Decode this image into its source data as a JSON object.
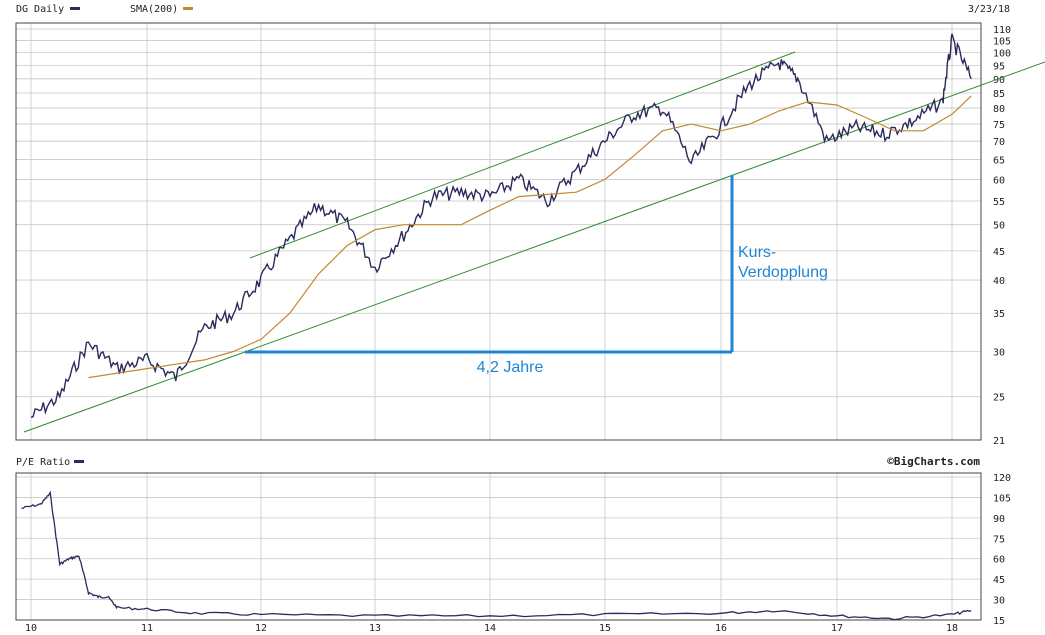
{
  "header": {
    "symbol_label": "DG Daily",
    "sma_label": "SMA(200)",
    "date": "3/23/18"
  },
  "lower_panel": {
    "title": "P/E Ratio",
    "credit": "©BigCharts.com"
  },
  "annotations": {
    "height_label_line1": "Kurs-",
    "height_label_line2": "Verdopplung",
    "width_label": "4,2 Jahre"
  },
  "colors": {
    "price": "#2a2a5c",
    "sma": "#c08a2e",
    "channel": "#2e8b2e",
    "annotation": "#1f86d6",
    "grid": "#c8c8c8"
  },
  "chart_data": [
    {
      "type": "line",
      "title": "DG Daily",
      "y_scale": "log",
      "ylim": [
        21,
        110
      ],
      "y_ticks": [
        21,
        25,
        30,
        35,
        40,
        45,
        50,
        55,
        60,
        65,
        70,
        75,
        80,
        85,
        90,
        95,
        100,
        105,
        110
      ],
      "x_ticks": [
        "10",
        "11",
        "12",
        "13",
        "14",
        "15",
        "16",
        "17",
        "18"
      ],
      "grid": true,
      "series": [
        {
          "name": "DG Daily",
          "x": [
            "2010-01",
            "2010-04",
            "2010-07",
            "2010-10",
            "2011-01",
            "2011-04",
            "2011-07",
            "2011-10",
            "2012-01",
            "2012-04",
            "2012-07",
            "2012-10",
            "2013-01",
            "2013-04",
            "2013-07",
            "2013-10",
            "2014-01",
            "2014-04",
            "2014-07",
            "2014-10",
            "2015-01",
            "2015-04",
            "2015-07",
            "2015-10",
            "2016-01",
            "2016-04",
            "2016-07",
            "2016-09",
            "2016-12",
            "2017-03",
            "2017-06",
            "2017-09",
            "2017-12",
            "2018-01",
            "2018-03"
          ],
          "values": [
            23,
            25,
            31,
            28,
            29,
            27,
            33,
            35,
            40,
            47,
            54,
            50,
            42,
            48,
            56,
            57,
            56,
            60,
            55,
            62,
            70,
            78,
            80,
            64,
            74,
            88,
            96,
            90,
            70,
            74,
            72,
            76,
            82,
            105,
            90
          ]
        },
        {
          "name": "SMA(200)",
          "x": [
            "2010-07",
            "2010-10",
            "2011-01",
            "2011-04",
            "2011-07",
            "2011-10",
            "2012-01",
            "2012-04",
            "2012-07",
            "2012-10",
            "2013-01",
            "2013-04",
            "2013-07",
            "2013-10",
            "2014-01",
            "2014-04",
            "2014-07",
            "2014-10",
            "2015-01",
            "2015-04",
            "2015-07",
            "2015-10",
            "2016-01",
            "2016-04",
            "2016-07",
            "2016-10",
            "2017-01",
            "2017-04",
            "2017-07",
            "2017-10",
            "2018-01",
            "2018-03"
          ],
          "values": [
            27,
            27.5,
            28,
            28.5,
            29,
            30,
            31.5,
            35,
            41,
            46,
            49,
            50,
            50,
            50,
            53,
            56,
            56.5,
            57,
            60,
            66,
            73,
            75,
            73,
            75,
            79,
            82,
            81,
            77,
            73,
            73,
            78,
            84
          ]
        }
      ]
    },
    {
      "type": "line",
      "title": "P/E Ratio",
      "ylim": [
        15,
        120
      ],
      "y_ticks": [
        15,
        30,
        45,
        60,
        75,
        90,
        105,
        120
      ],
      "x_ticks": [
        "10",
        "11",
        "12",
        "13",
        "14",
        "15",
        "16",
        "17",
        "18"
      ],
      "grid": true,
      "series": [
        {
          "name": "P/E Ratio",
          "x": [
            "2009-12",
            "2010-02",
            "2010-03",
            "2010-04",
            "2010-05",
            "2010-06",
            "2010-07",
            "2010-08",
            "2010-09",
            "2010-10",
            "2011-01",
            "2011-06",
            "2012-01",
            "2013-01",
            "2014-01",
            "2015-01",
            "2016-01",
            "2016-07",
            "2017-01",
            "2017-07",
            "2018-01",
            "2018-03"
          ],
          "values": [
            97,
            100,
            108,
            56,
            60,
            62,
            35,
            32,
            32,
            24,
            23,
            20,
            19,
            18,
            18,
            19,
            20,
            22,
            18,
            16,
            19,
            22
          ]
        }
      ]
    }
  ]
}
